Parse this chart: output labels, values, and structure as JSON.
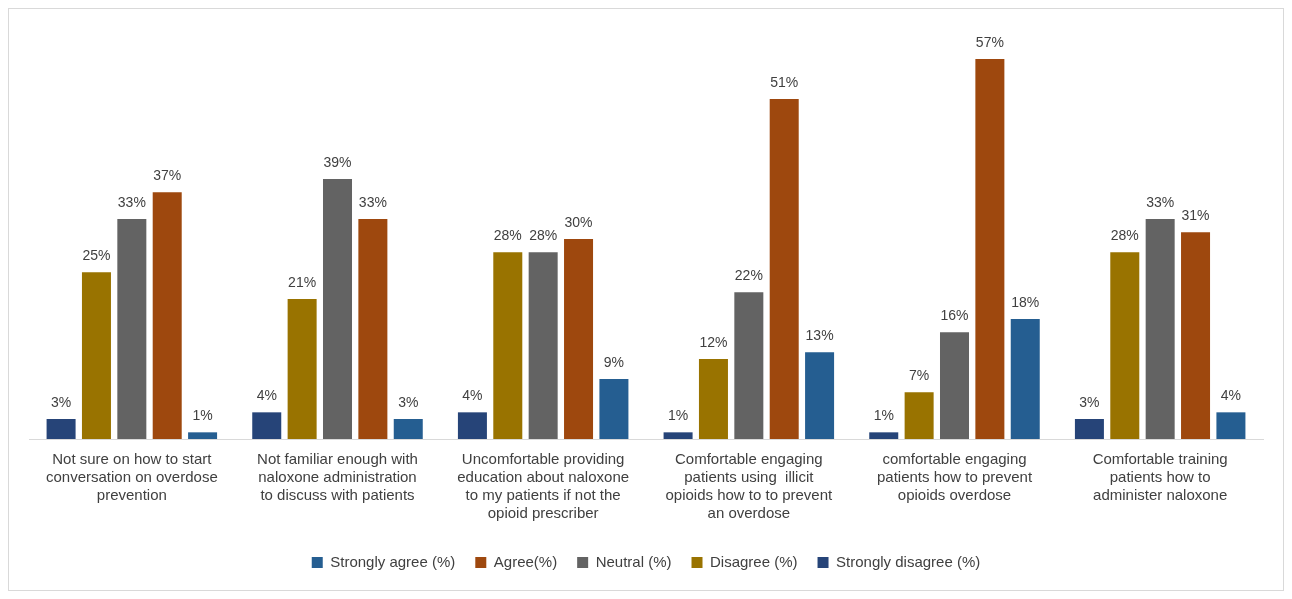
{
  "chart_data": {
    "type": "bar",
    "categories": [
      "Not sure on how to start conversation on overdose prevention",
      "Not familiar enough with naloxone administration to discuss with patients",
      "Uncomfortable providing education about naloxone to my patients if not the opioid prescriber",
      "Comfortable engaging patients using  illicit opioids how to to prevent an overdose",
      "comfortable engaging patients how to prevent opioids overdose",
      "Comfortable training patients how to administer naloxone"
    ],
    "series": [
      {
        "name": "Strongly disagree (%)",
        "color": "#264478",
        "values": [
          3,
          4,
          4,
          1,
          1,
          3
        ],
        "value_labels": [
          "3%",
          "4%",
          "4%",
          "1%",
          "1%",
          "3%"
        ]
      },
      {
        "name": "Disagree (%)",
        "color": "#997300",
        "values": [
          25,
          21,
          28,
          12,
          7,
          28
        ],
        "value_labels": [
          "25%",
          "21%",
          "28%",
          "12%",
          "7%",
          "28%"
        ]
      },
      {
        "name": "Neutral (%)",
        "color": "#636363",
        "values": [
          33,
          39,
          28,
          22,
          16,
          33
        ],
        "value_labels": [
          "33%",
          "39%",
          "28%",
          "22%",
          "16%",
          "33%"
        ]
      },
      {
        "name": "Agree(%)",
        "color": "#9e480e",
        "values": [
          37,
          33,
          30,
          51,
          57,
          31
        ],
        "value_labels": [
          "37%",
          "33%",
          "30%",
          "51%",
          "57%",
          "31%"
        ]
      },
      {
        "name": "Strongly agree (%)",
        "color": "#255e91",
        "values": [
          1,
          3,
          9,
          13,
          18,
          4
        ],
        "value_labels": [
          "1%",
          "3%",
          "9%",
          "13%",
          "18%",
          "4%"
        ]
      }
    ],
    "grid": false,
    "legend": "bottom"
  }
}
